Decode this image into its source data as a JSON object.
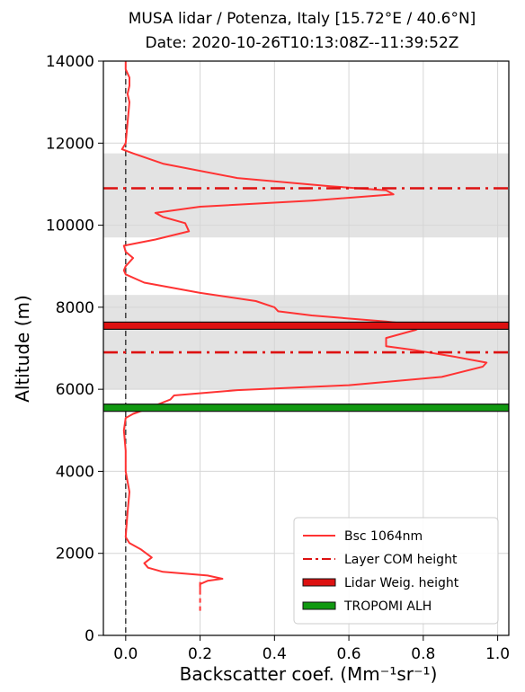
{
  "chart_data": {
    "type": "line",
    "title": "MUSA lidar / Potenza, Italy [15.72$^\\circ$E / 40.6$^\\circ$N]",
    "title_display": "MUSA lidar / Potenza, Italy [15.72°E / 40.6°N]",
    "subtitle": "Date: 2020-10-26T10:13:08Z--11:39:52Z",
    "xlabel": "Backscatter coef. (Mm⁻¹sr⁻¹)",
    "ylabel": "Altitude (m)",
    "xlim": [
      -0.06,
      1.03
    ],
    "ylim": [
      0,
      14000
    ],
    "xticks": [
      "0.0",
      "0.2",
      "0.4",
      "0.6",
      "0.8",
      "1.0"
    ],
    "xtick_values": [
      0.0,
      0.2,
      0.4,
      0.6,
      0.8,
      1.0
    ],
    "yticks": [
      "0",
      "2000",
      "4000",
      "6000",
      "8000",
      "10000",
      "12000",
      "14000"
    ],
    "ytick_values": [
      0,
      2000,
      4000,
      6000,
      8000,
      10000,
      12000,
      14000
    ],
    "grid": true,
    "legend_position": "lower-right",
    "shaded_layers": [
      {
        "ymin": 9700,
        "ymax": 11750
      },
      {
        "ymin": 6000,
        "ymax": 8300
      }
    ],
    "series": [
      {
        "name": "Bsc 1064nm",
        "color": "#ff3333",
        "style": "solid",
        "points": [
          [
            0.2,
            1100
          ],
          [
            0.2,
            1250
          ],
          [
            0.22,
            1330
          ],
          [
            0.26,
            1380
          ],
          [
            0.22,
            1460
          ],
          [
            0.1,
            1550
          ],
          [
            0.06,
            1650
          ],
          [
            0.05,
            1760
          ],
          [
            0.07,
            1900
          ],
          [
            0.04,
            2100
          ],
          [
            0.01,
            2250
          ],
          [
            0.0,
            2400
          ],
          [
            0.005,
            3000
          ],
          [
            0.01,
            3500
          ],
          [
            0.0,
            4000
          ],
          [
            0.0,
            4500
          ],
          [
            -0.005,
            5000
          ],
          [
            0.0,
            5300
          ],
          [
            0.02,
            5400
          ],
          [
            0.05,
            5500
          ],
          [
            0.12,
            5750
          ],
          [
            0.13,
            5850
          ],
          [
            0.3,
            5980
          ],
          [
            0.6,
            6100
          ],
          [
            0.85,
            6300
          ],
          [
            0.96,
            6550
          ],
          [
            0.97,
            6650
          ],
          [
            0.88,
            6800
          ],
          [
            0.78,
            6950
          ],
          [
            0.7,
            7050
          ],
          [
            0.7,
            7250
          ],
          [
            0.78,
            7450
          ],
          [
            0.8,
            7550
          ],
          [
            0.7,
            7650
          ],
          [
            0.5,
            7800
          ],
          [
            0.41,
            7900
          ],
          [
            0.4,
            8000
          ],
          [
            0.35,
            8150
          ],
          [
            0.2,
            8350
          ],
          [
            0.05,
            8600
          ],
          [
            0.0,
            8800
          ],
          [
            -0.005,
            8900
          ],
          [
            0.0,
            9000
          ],
          [
            0.02,
            9200
          ],
          [
            0.0,
            9350
          ],
          [
            -0.005,
            9500
          ],
          [
            0.08,
            9650
          ],
          [
            0.17,
            9850
          ],
          [
            0.16,
            10050
          ],
          [
            0.1,
            10200
          ],
          [
            0.08,
            10300
          ],
          [
            0.2,
            10450
          ],
          [
            0.5,
            10600
          ],
          [
            0.72,
            10750
          ],
          [
            0.7,
            10850
          ],
          [
            0.55,
            10950
          ],
          [
            0.3,
            11150
          ],
          [
            0.1,
            11500
          ],
          [
            0.02,
            11750
          ],
          [
            -0.01,
            11850
          ],
          [
            0.0,
            12000
          ],
          [
            0.005,
            12500
          ],
          [
            0.01,
            13000
          ],
          [
            0.005,
            13200
          ],
          [
            0.01,
            13400
          ],
          [
            0.01,
            13600
          ],
          [
            0.0,
            13800
          ],
          [
            0.0,
            14000
          ]
        ]
      }
    ],
    "reference_lines": [
      {
        "name": "Layer COM height",
        "y": 10900,
        "color": "#dd1111",
        "style": "dashdot"
      },
      {
        "name": "Layer COM height",
        "y": 6900,
        "color": "#dd1111",
        "style": "dashdot"
      },
      {
        "name": "Lidar Weig. height",
        "y": 7550,
        "color": "#dd1111",
        "style": "thick"
      },
      {
        "name": "TROPOMI ALH",
        "y": 5550,
        "color": "#119911",
        "style": "thick"
      },
      {
        "name": "zero",
        "x": 0.0,
        "color": "#333333",
        "style": "dashed"
      }
    ],
    "legend": [
      {
        "label": "Bsc 1064nm",
        "kind": "line",
        "color": "#ff3333"
      },
      {
        "label": "Layer COM height",
        "kind": "dashdot",
        "color": "#dd1111"
      },
      {
        "label": "Lidar Weig. height",
        "kind": "box",
        "color": "#dd1111"
      },
      {
        "label": "TROPOMI ALH",
        "kind": "box",
        "color": "#119911"
      }
    ]
  }
}
